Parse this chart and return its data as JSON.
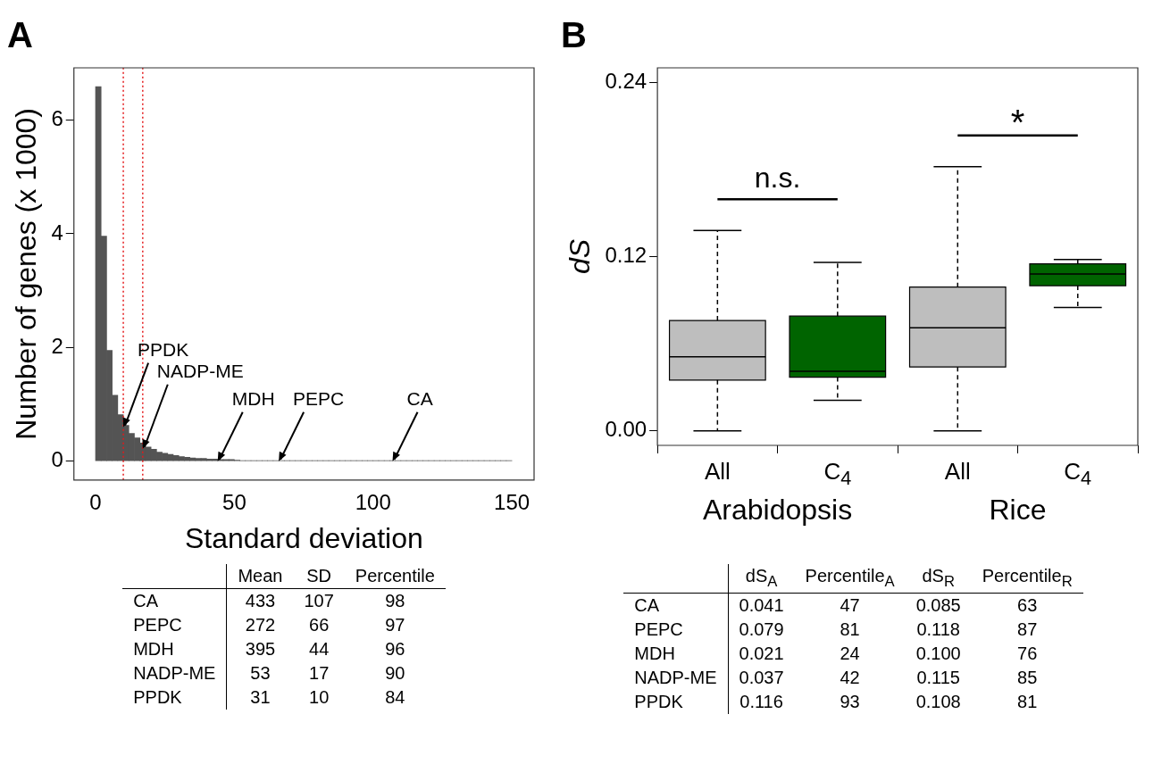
{
  "chart_data": [
    {
      "type": "histogram",
      "title": "A",
      "xlabel": "Standard deviation",
      "ylabel": "Number of genes (x 1000)",
      "color": "#545454",
      "bins": [
        0,
        2,
        4,
        6,
        8,
        10,
        12,
        14,
        16,
        18,
        20,
        22,
        24,
        26,
        28,
        30,
        32,
        34,
        36,
        38,
        40,
        42,
        44,
        46,
        48,
        50,
        52,
        54,
        56,
        58,
        60,
        62,
        64,
        66,
        68,
        70,
        72,
        74,
        76,
        78,
        80,
        82,
        84,
        86,
        88,
        90,
        92,
        94,
        96,
        98,
        100,
        102,
        104,
        106,
        108,
        110,
        112,
        114,
        116,
        118,
        120,
        122,
        124,
        126,
        128,
        130,
        132,
        134,
        136,
        138,
        140,
        142,
        144,
        146,
        148,
        150
      ],
      "values": [
        6.59,
        3.96,
        1.95,
        1.16,
        0.82,
        0.63,
        0.49,
        0.41,
        0.32,
        0.25,
        0.21,
        0.16,
        0.14,
        0.12,
        0.1,
        0.08,
        0.07,
        0.06,
        0.05,
        0.05,
        0.04,
        0.04,
        0.03,
        0.03,
        0.03,
        0.02,
        0.01,
        0.01,
        0.01,
        0.01,
        0.01,
        0.01,
        0.01,
        0.01,
        0.01,
        0.01,
        0.01,
        0.01,
        0.01,
        0.01,
        0.01,
        0.01,
        0.01,
        0.01,
        0.01,
        0.01,
        0.01,
        0.01,
        0.01,
        0.01,
        0.01,
        0.01,
        0.01,
        0.01,
        0.01,
        0.01,
        0.01,
        0.01,
        0.01,
        0.01,
        0.01,
        0.01,
        0.01,
        0.01,
        0.01,
        0.01,
        0.01,
        0.01,
        0.01,
        0.01,
        0.01,
        0.01,
        0.01,
        0.01,
        0.01
      ],
      "xlim": [
        -7.8,
        158
      ],
      "xticks": [
        0,
        50,
        100,
        150
      ],
      "ylim": [
        -0.33,
        6.92
      ],
      "yticks": [
        0,
        2,
        4,
        6
      ],
      "ref_lines": [
        {
          "axis": "x",
          "value": 10,
          "color": "#e41a1c",
          "line_style": "dotted"
        },
        {
          "axis": "x",
          "value": 17,
          "color": "#e41a1c",
          "line_style": "dotted"
        }
      ],
      "annotations": [
        {
          "text": "PPDK",
          "x": 10,
          "y": 0.6
        },
        {
          "text": "NADP-ME",
          "x": 17,
          "y": 0.22
        },
        {
          "text": "MDH",
          "x": 44,
          "y": 0
        },
        {
          "text": "PEPC",
          "x": 66,
          "y": 0
        },
        {
          "text": "CA",
          "x": 107,
          "y": 0
        }
      ],
      "legend": false,
      "grid": false
    },
    {
      "type": "box",
      "title": "B",
      "ylabel": "dS",
      "categories": [
        "All",
        "C$_{4}$",
        "All",
        "C$_{4}$"
      ],
      "boxes": [
        {
          "low": 0,
          "q1": 0.035,
          "median": 0.051,
          "q3": 0.076,
          "high": 0.138
        },
        {
          "low": 0.021,
          "q1": 0.037,
          "median": 0.041,
          "q3": 0.079,
          "high": 0.116
        },
        {
          "low": 0,
          "q1": 0.044,
          "median": 0.071,
          "q3": 0.099,
          "high": 0.182
        },
        {
          "low": 0.085,
          "q1": 0.1,
          "median": 0.108,
          "q3": 0.115,
          "high": 0.118
        }
      ],
      "colors": [
        "#bebebe",
        "#006400",
        "#bebebe",
        "#006400"
      ],
      "ylim": [
        -0.01,
        0.25
      ],
      "yticks": [
        {
          "value": 0,
          "label": "0.00"
        },
        0.12,
        0.24
      ],
      "annotations": [
        "n.s.",
        "*",
        "Arabidopsis",
        "Rice"
      ],
      "legend": false,
      "grid": false
    },
    {
      "type": "other",
      "categories": [
        "Mean",
        "SD",
        "Percentile"
      ],
      "y_categories": [
        "CA",
        "PEPC",
        "MDH",
        "NADP-ME",
        "PPDK"
      ],
      "cell_labels": [
        [
          "433",
          "107",
          "98"
        ],
        [
          "272",
          "66",
          "97"
        ],
        [
          "395",
          "44",
          "96"
        ],
        [
          "53",
          "17",
          "90"
        ],
        [
          "31",
          "10",
          "84"
        ]
      ]
    },
    {
      "type": "other",
      "categories": [
        "dS$_{A}$",
        "Percentile$_{A}$",
        "dS$_{R}$",
        "Percentile$_{R}$"
      ],
      "y_categories": [
        "CA",
        "PEPC",
        "MDH",
        "NADP-ME",
        "PPDK"
      ],
      "cell_labels": [
        [
          "0.041",
          "47",
          "0.085",
          "63"
        ],
        [
          "0.079",
          "81",
          "0.118",
          "87"
        ],
        [
          "0.021",
          "24",
          "0.100",
          "76"
        ],
        [
          "0.037",
          "42",
          "0.115",
          "85"
        ],
        [
          "0.116",
          "93",
          "0.108",
          "81"
        ]
      ]
    }
  ]
}
